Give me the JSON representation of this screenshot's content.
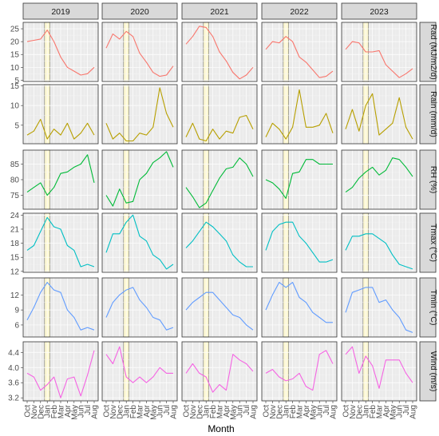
{
  "chart_data": {
    "type": "line",
    "xlabel": "Month",
    "x": [
      "Oct",
      "Nov",
      "Dec",
      "Jan",
      "Feb",
      "Mar",
      "Apr",
      "May",
      "Jun",
      "Jul",
      "Aug"
    ],
    "column_facets": [
      "2019",
      "2020",
      "2021",
      "2022",
      "2023"
    ],
    "row_facets": [
      {
        "label": "Rad (MJ/m2/d)",
        "color": "#f8766d",
        "ylim": [
          4.5,
          27.5
        ],
        "yticks": [
          5,
          10,
          15,
          20,
          25
        ],
        "values": {
          "2019": [
            20,
            20.5,
            21,
            24.5,
            20,
            14,
            10,
            8.5,
            7,
            7.5,
            10
          ],
          "2020": [
            17.5,
            23,
            21,
            24,
            22,
            15.5,
            12,
            8,
            6.5,
            7,
            10.5
          ],
          "2021": [
            19,
            22,
            26,
            25.5,
            22,
            16,
            12.5,
            8,
            5.5,
            7,
            10
          ],
          "2022": [
            17,
            20,
            19.5,
            22,
            20,
            14,
            12,
            9,
            6,
            6.5,
            8.5
          ],
          "2023": [
            17,
            20,
            19.5,
            16,
            16,
            16.5,
            11,
            8.5,
            6,
            7.5,
            9.5
          ]
        }
      },
      {
        "label": "Rain (mm/d)",
        "color": "#b79f00",
        "ylim": [
          0.3,
          15.3
        ],
        "yticks": [
          5,
          10,
          15
        ],
        "values": {
          "2019": [
            2.5,
            3.5,
            6.5,
            1.5,
            4,
            2.5,
            5.5,
            1.5,
            3,
            5.5,
            2.5
          ],
          "2020": [
            5.5,
            1.5,
            3,
            1,
            1,
            3,
            2.5,
            4.5,
            14.5,
            8,
            4.5
          ],
          "2021": [
            2,
            5.5,
            1.5,
            1,
            4,
            1.5,
            3.5,
            3,
            7,
            7.5,
            4
          ],
          "2022": [
            2,
            5.5,
            4,
            1.5,
            4.5,
            14,
            4.5,
            4.5,
            5,
            8,
            3
          ],
          "2023": [
            4,
            9,
            3.5,
            10,
            13,
            2.5,
            4,
            5.5,
            12,
            4.5,
            1.5
          ]
        }
      },
      {
        "label": "RH (%)",
        "color": "#00ba38",
        "ylim": [
          70.5,
          89.5
        ],
        "yticks": [
          75,
          80,
          85
        ],
        "values": {
          "2019": [
            76,
            77.5,
            79,
            75,
            77.5,
            82,
            82.5,
            84,
            85,
            88,
            79
          ],
          "2020": [
            75,
            71.5,
            77,
            72.5,
            73,
            80,
            82,
            85.5,
            87,
            89,
            84
          ],
          "2021": [
            77.5,
            74.5,
            71,
            72.5,
            76.5,
            80.5,
            83.5,
            84,
            87,
            85,
            81
          ],
          "2022": [
            80,
            79,
            77,
            74,
            82,
            82.5,
            86.5,
            86.5,
            85,
            85,
            85
          ],
          "2023": [
            76,
            77.5,
            80.5,
            82.5,
            84,
            81.5,
            83,
            87,
            86.5,
            84,
            81
          ]
        }
      },
      {
        "label": "Tmax (°C)",
        "color": "#00bfc4",
        "ylim": [
          11.8,
          24.4
        ],
        "yticks": [
          12,
          15,
          18,
          21,
          24
        ],
        "values": {
          "2019": [
            16.5,
            17.5,
            20.5,
            23.5,
            21.5,
            21,
            17.5,
            16.5,
            13,
            13.5,
            13
          ],
          "2020": [
            16,
            20,
            20,
            22.5,
            24,
            19.5,
            18.5,
            15.5,
            14.5,
            12.5,
            13.5
          ],
          "2021": [
            17,
            18.5,
            20.5,
            22.5,
            21.5,
            20,
            18.5,
            15.5,
            14,
            13,
            13
          ],
          "2022": [
            16.5,
            20.5,
            22,
            22.5,
            22.5,
            19.5,
            18,
            16,
            14,
            14,
            14.5
          ],
          "2023": [
            16.5,
            19.5,
            19.5,
            20,
            20,
            19,
            18,
            15.5,
            13.5,
            13,
            12.5
          ]
        }
      },
      {
        "label": "Tmin (°C)",
        "color": "#619cff",
        "ylim": [
          3.6,
          15.4
        ],
        "yticks": [
          6,
          9,
          12
        ],
        "values": {
          "2019": [
            7,
            9.5,
            12.5,
            14.5,
            13,
            12.5,
            9,
            7.5,
            5,
            5.5,
            5
          ],
          "2020": [
            7.5,
            10.5,
            12,
            13,
            13.5,
            11,
            9.5,
            7.5,
            7,
            5,
            5.5
          ],
          "2021": [
            9,
            10.5,
            11.5,
            12.5,
            12.5,
            11,
            9.5,
            8,
            7.5,
            6,
            5
          ],
          "2022": [
            9,
            12,
            14.5,
            13.5,
            14.5,
            11.5,
            10.5,
            8.5,
            7.5,
            6.5,
            6.5
          ],
          "2023": [
            8.5,
            12.5,
            13,
            13.5,
            13.5,
            10.5,
            11,
            9,
            7.5,
            5,
            4.5
          ]
        }
      },
      {
        "label": "Wind (m/s)",
        "color": "#f564e3",
        "ylim": [
          3.12,
          4.68
        ],
        "yticks": [
          3.2,
          3.6,
          4.0,
          4.4
        ],
        "values": {
          "2019": [
            3.85,
            3.75,
            3.4,
            3.55,
            3.75,
            3.2,
            3.7,
            3.75,
            3.25,
            3.8,
            4.45
          ],
          "2020": [
            4.35,
            4.1,
            4.55,
            3.75,
            3.6,
            3.75,
            3.6,
            3.75,
            4.0,
            3.85,
            3.85
          ],
          "2021": [
            3.85,
            4.1,
            3.85,
            3.75,
            3.35,
            3.55,
            3.4,
            4.35,
            4.2,
            4.1,
            3.9
          ],
          "2022": [
            3.85,
            3.95,
            3.75,
            3.65,
            3.7,
            3.85,
            3.5,
            3.4,
            4.35,
            4.45,
            4.1
          ],
          "2023": [
            4.35,
            4.55,
            3.85,
            4.3,
            4.05,
            3.45,
            4.2,
            4.2,
            4.2,
            3.85,
            3.6
          ]
        }
      }
    ]
  }
}
